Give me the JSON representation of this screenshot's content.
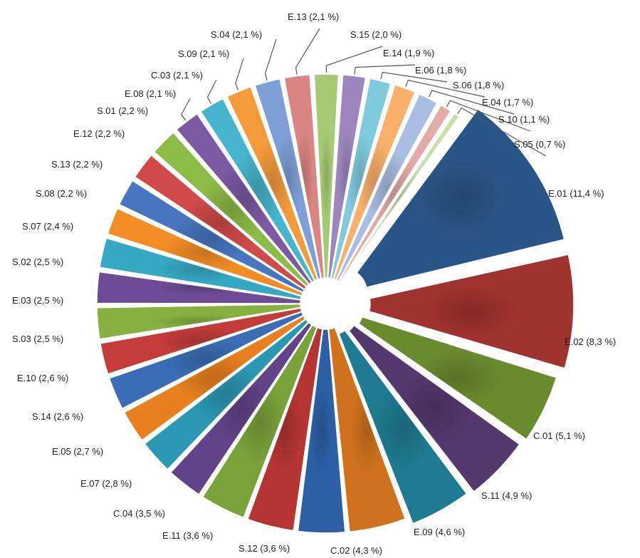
{
  "chart_data": {
    "type": "pie",
    "variant": "exploded-donut-3d",
    "title": "",
    "legend": "none",
    "slices": [
      {
        "label": "E.01 (11,4 %)",
        "category": "E.01",
        "value": 11.4,
        "color": "#2a5687"
      },
      {
        "label": "E.02 (8,3 %)",
        "category": "E.02",
        "value": 8.3,
        "color": "#a0322f"
      },
      {
        "label": "C.01 (5,1 %)",
        "category": "C.01",
        "value": 5.1,
        "color": "#6a8a2e"
      },
      {
        "label": "S.11 (4,9 %)",
        "category": "S.11",
        "value": 4.9,
        "color": "#54386e"
      },
      {
        "label": "E.09 (4,6 %)",
        "category": "E.09",
        "value": 4.6,
        "color": "#1f7b91"
      },
      {
        "label": "C.02 (4,3 %)",
        "category": "C.02",
        "value": 4.3,
        "color": "#d0721d"
      },
      {
        "label": "S.12 (3,6 %)",
        "category": "S.12",
        "value": 3.6,
        "color": "#2c5fa5"
      },
      {
        "label": "E.11 (3,6 %)",
        "category": "E.11",
        "value": 3.6,
        "color": "#b43533"
      },
      {
        "label": "C.04 (3,5 %)",
        "category": "C.04",
        "value": 3.5,
        "color": "#7aa23a"
      },
      {
        "label": "E.07 (2,8 %)",
        "category": "E.07",
        "value": 2.8,
        "color": "#62438a"
      },
      {
        "label": "E.05 (2,7 %)",
        "category": "E.05",
        "value": 2.7,
        "color": "#2b98b3"
      },
      {
        "label": "S.14 (2,6 %)",
        "category": "S.14",
        "value": 2.6,
        "color": "#e8801f"
      },
      {
        "label": "E.10 (2,6 %)",
        "category": "E.10",
        "value": 2.6,
        "color": "#3a6db5"
      },
      {
        "label": "S.03 (2,5 %)",
        "category": "S.03",
        "value": 2.5,
        "color": "#c43c3a"
      },
      {
        "label": "E.03 (2,5 %)",
        "category": "E.03",
        "value": 2.5,
        "color": "#86b140"
      },
      {
        "label": "S.02 (2,5 %)",
        "category": "S.02",
        "value": 2.5,
        "color": "#6e4b97"
      },
      {
        "label": "S.07 (2,4 %)",
        "category": "S.07",
        "value": 2.4,
        "color": "#35a9c3"
      },
      {
        "label": "S.08 (2,2 %)",
        "category": "S.08",
        "value": 2.2,
        "color": "#f38c25"
      },
      {
        "label": "S.13 (2,2 %)",
        "category": "S.13",
        "value": 2.2,
        "color": "#4775c0"
      },
      {
        "label": "E.12 (2,2 %)",
        "category": "E.12",
        "value": 2.2,
        "color": "#cf4a48"
      },
      {
        "label": "S.01 (2,2 %)",
        "category": "S.01",
        "value": 2.2,
        "color": "#8cbb47"
      },
      {
        "label": "E.08 (2,1 %)",
        "category": "E.08",
        "value": 2.1,
        "color": "#7b5aa3"
      },
      {
        "label": "C.03 (2,1 %)",
        "category": "C.03",
        "value": 2.1,
        "color": "#45b4cc"
      },
      {
        "label": "S.09 (2,1 %)",
        "category": "S.09",
        "value": 2.1,
        "color": "#f59a3b"
      },
      {
        "label": "S.04 (2,1 %)",
        "category": "S.04",
        "value": 2.1,
        "color": "#7e9fd6"
      },
      {
        "label": "E.13 (2,1 %)",
        "category": "E.13",
        "value": 2.1,
        "color": "#d98583"
      },
      {
        "label": "S.15 (2,0 %)",
        "category": "S.15",
        "value": 2.0,
        "color": "#a6ca74"
      },
      {
        "label": "E.14 (1,9 %)",
        "category": "E.14",
        "value": 1.9,
        "color": "#9c86bd"
      },
      {
        "label": "E.06 (1,8 %)",
        "category": "E.06",
        "value": 1.8,
        "color": "#7fcadc"
      },
      {
        "label": "S.06 (1,8 %)",
        "category": "S.06",
        "value": 1.8,
        "color": "#f8b06a"
      },
      {
        "label": "E.04 (1,7 %)",
        "category": "E.04",
        "value": 1.7,
        "color": "#a9bde2"
      },
      {
        "label": "S.10 (1,1 %)",
        "category": "S.10",
        "value": 1.1,
        "color": "#e2aaa8"
      },
      {
        "label": "S.05 (0,7 %)",
        "category": "S.05",
        "value": 0.7,
        "color": "#c7dea8"
      }
    ]
  }
}
